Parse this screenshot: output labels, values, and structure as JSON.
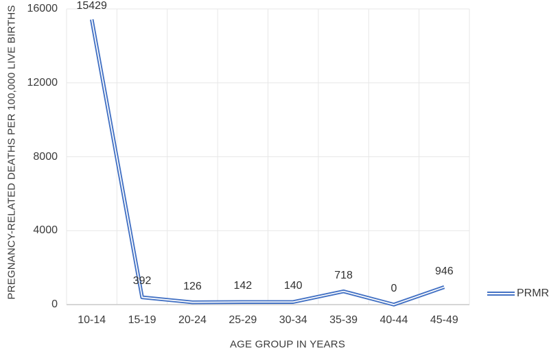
{
  "chart_data": {
    "type": "line",
    "title": "",
    "categories": [
      "10-14",
      "15-19",
      "20-24",
      "25-29",
      "30-34",
      "35-39",
      "40-44",
      "45-49"
    ],
    "series": [
      {
        "name": "PRMR",
        "values": [
          15429,
          392,
          126,
          142,
          140,
          718,
          0,
          946
        ]
      }
    ],
    "data_labels_shown": true,
    "xlabel": "AGE GROUP IN YEARS",
    "ylabel": "PREGNANCY-RELATED DEATHS PER 100,000 LIVE BIRTHS",
    "ylim": [
      0,
      16000
    ],
    "yticks": [
      0,
      4000,
      8000,
      12000,
      16000
    ],
    "grid": "horizontal-and-vertical",
    "legend_position": "right",
    "line_style": "double",
    "colors": {
      "series": "#4472C4",
      "gridline": "#E7E7E7",
      "axis_line": "#C9C9C9",
      "text": "#3A3A3A"
    }
  },
  "legend": {
    "label": "PRMR"
  }
}
